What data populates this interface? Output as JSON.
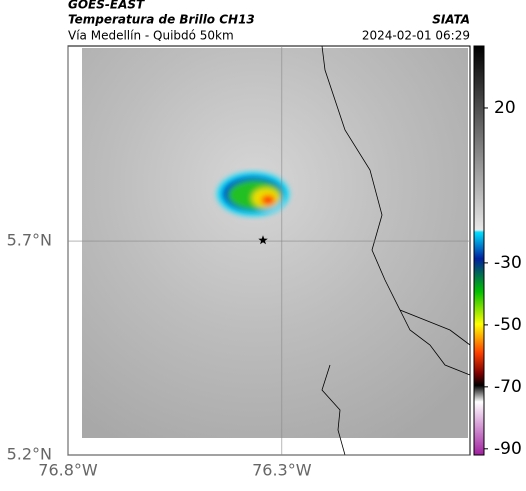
{
  "header": {
    "satellite": "GOES-EAST",
    "product": "Temperatura de Brillo CH13",
    "region": "Vía Medellín - Quibdó 50km",
    "source": "SIATA",
    "datetime": "2024-02-01 06:29"
  },
  "map": {
    "xlim": [
      -76.8,
      -75.86
    ],
    "ylim": [
      5.2,
      6.156
    ],
    "xticks": [
      {
        "value": -76.8,
        "label": "76.8°W"
      },
      {
        "value": -76.3,
        "label": "76.3°W"
      }
    ],
    "yticks": [
      {
        "value": 5.2,
        "label": "5.2°N"
      },
      {
        "value": 5.7,
        "label": "5.7°N"
      }
    ],
    "grid": true,
    "marker": {
      "lon": -76.344,
      "lat": 5.702
    }
  },
  "colorbar": {
    "lim": [
      -92,
      40
    ],
    "ticks": [
      20,
      -30,
      -50,
      -70,
      -90
    ]
  }
}
